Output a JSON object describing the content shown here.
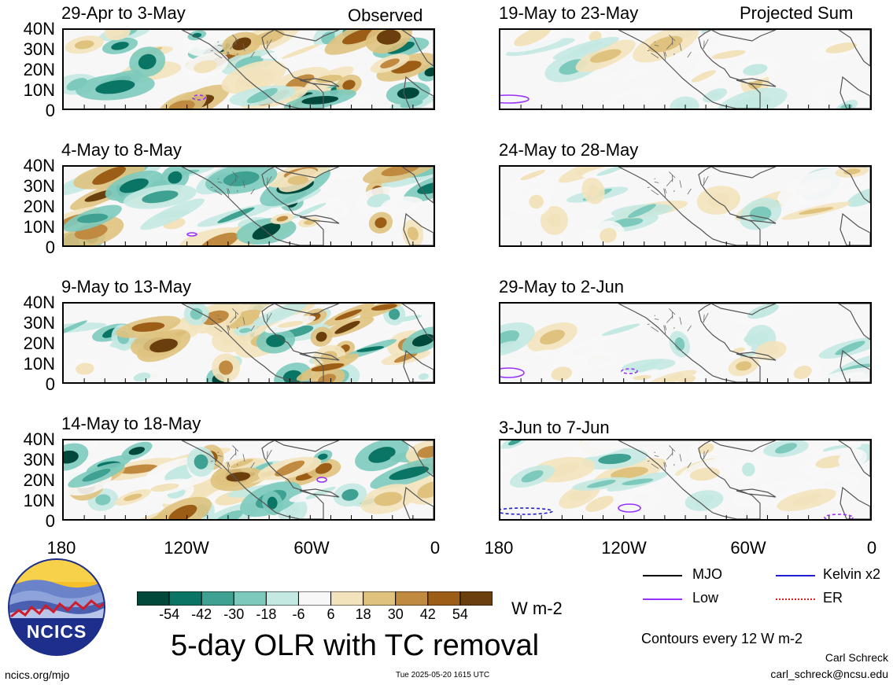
{
  "chart_data": {
    "type": "heatmap",
    "title": "5-day OLR with TC removal",
    "y_ticks": [
      "40N",
      "30N",
      "20N",
      "10N",
      "0"
    ],
    "x_ticks": [
      "180",
      "120W",
      "60W",
      "0"
    ],
    "units": "W m-2",
    "colorbar_ticks": [
      "-54",
      "-42",
      "-30",
      "-18",
      "-6",
      "6",
      "18",
      "30",
      "42",
      "54"
    ],
    "colorbar_colors": [
      "#00483a",
      "#0a7565",
      "#3ea192",
      "#7dcabc",
      "#c4e9e2",
      "#f7f7f7",
      "#f3e3bc",
      "#dfc27e",
      "#c18a41",
      "#9c5d17",
      "#6b3e0d"
    ],
    "panels": [
      {
        "id": "p1",
        "title": "29-Apr to 3-May",
        "corner": "Observed"
      },
      {
        "id": "p2",
        "title": "4-May to 8-May",
        "corner": ""
      },
      {
        "id": "p3",
        "title": "9-May to 13-May",
        "corner": ""
      },
      {
        "id": "p4",
        "title": "14-May to 18-May",
        "corner": ""
      },
      {
        "id": "p5",
        "title": "19-May to 23-May",
        "corner": "Projected Sum"
      },
      {
        "id": "p6",
        "title": "24-May to 28-May",
        "corner": ""
      },
      {
        "id": "p7",
        "title": "29-May to 2-Jun",
        "corner": ""
      },
      {
        "id": "p8",
        "title": "3-Jun to 7-Jun",
        "corner": ""
      }
    ]
  },
  "legend": {
    "items": [
      {
        "label": "MJO",
        "color": "#000000",
        "style": "solid"
      },
      {
        "label": "Kelvin x2",
        "color": "#1f1fd0",
        "style": "solid"
      },
      {
        "label": "Low",
        "color": "#9b30ff",
        "style": "solid"
      },
      {
        "label": "ER",
        "color": "#e02020",
        "style": "dotted"
      }
    ],
    "contours_note": "Contours every 12 W m-2"
  },
  "footer": {
    "logo_text": "NCICS",
    "url": "ncics.org/mjo",
    "timestamp": "Tue 2025-05-20 1615 UTC",
    "author": "Carl Schreck",
    "email": "carl_schreck@ncsu.edu"
  }
}
